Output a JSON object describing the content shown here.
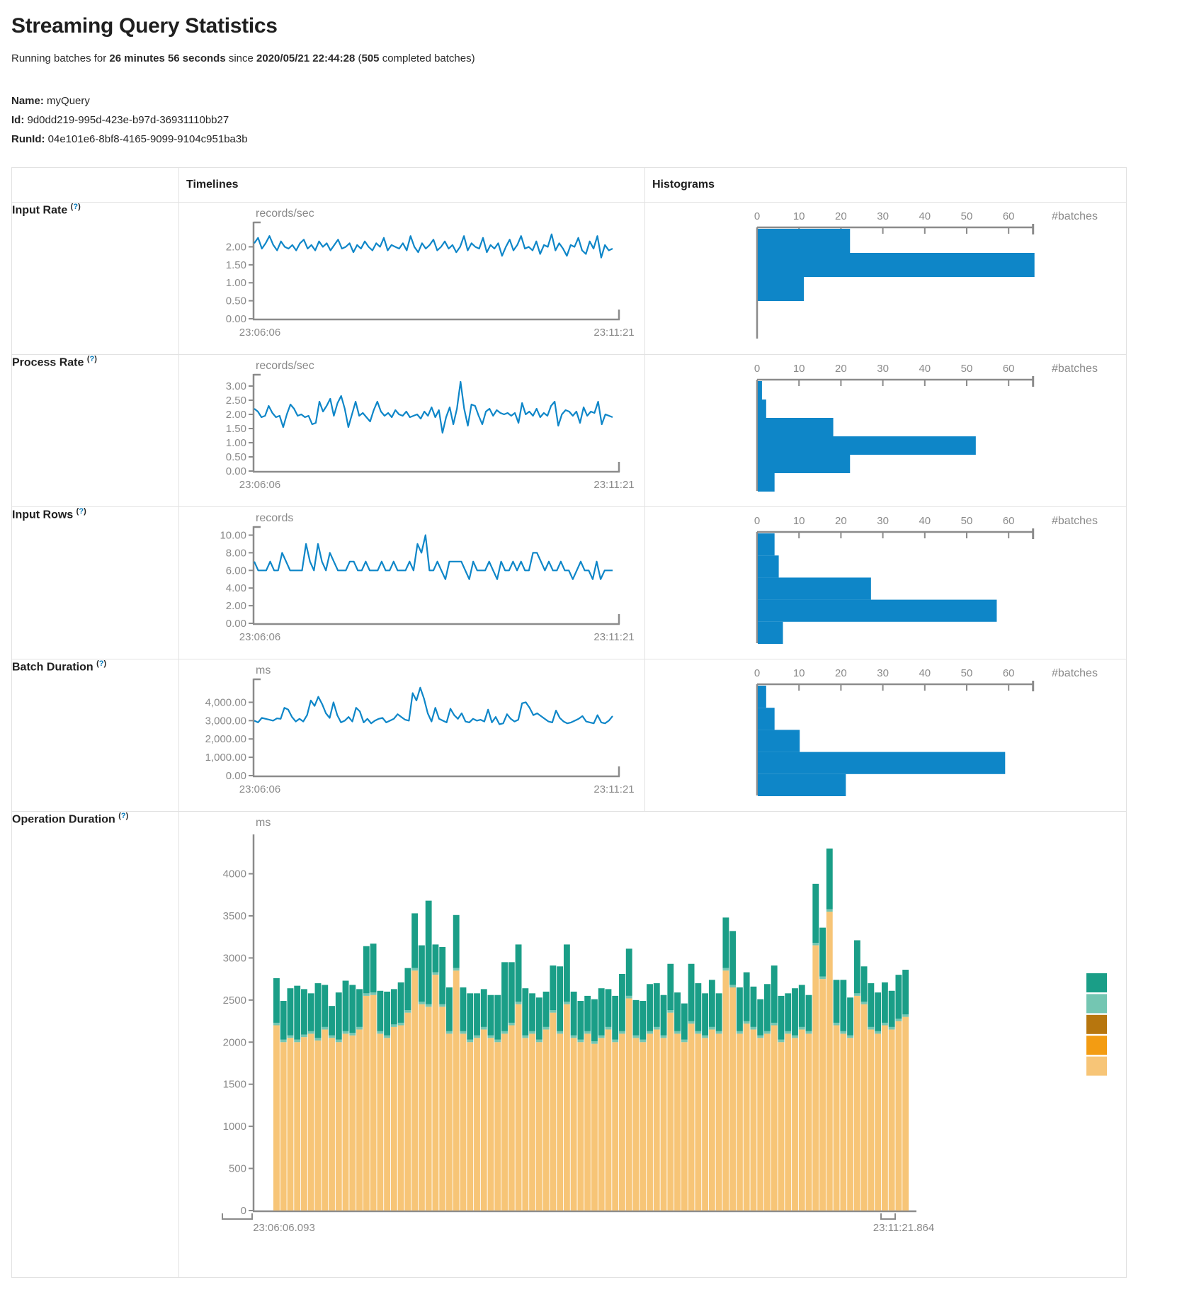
{
  "page": {
    "title": "Streaming Query Statistics",
    "subtitle": {
      "prefix": "Running batches for ",
      "duration": "26 minutes 56 seconds",
      "mid": " since ",
      "start_time": "2020/05/21 22:44:28",
      "paren": " (",
      "batch_count": "505",
      "suffix": " completed batches)"
    },
    "query": {
      "name_label": "Name:",
      "name": "myQuery",
      "id_label": "Id:",
      "id": "9d0dd219-995d-423e-b97d-36931110bb27",
      "runid_label": "RunId:",
      "runid": "04e101e6-8bf8-4165-9099-9104c951ba3b"
    }
  },
  "table": {
    "col_timelines": "Timelines",
    "col_histograms": "Histograms"
  },
  "help_marker": {
    "open": "(",
    "q": "?",
    "close": ")"
  },
  "colors": {
    "line_blue": "#0e86c8",
    "axis_gray": "#8b8b8b",
    "tick_text": "#8a8a8a",
    "teal": "#1a9e87",
    "light_teal": "#74c6b2",
    "dark_orange": "#b7760e",
    "orange": "#f39c12",
    "light_orange": "#f7c577",
    "help_blue": "#0077b9",
    "border": "#e2e2e2"
  },
  "chart_data": {
    "rows": [
      {
        "label": "Input Rate",
        "timeline": {
          "type": "line",
          "unit": "records/sec",
          "color": "#0e86c8",
          "ymax": 2.6,
          "ytick_values": [
            0,
            0.5,
            1,
            1.5,
            2
          ],
          "ytick_labels": [
            "0.00",
            "0.50",
            "1.00",
            "1.50",
            "2.00"
          ],
          "x_start": "23:06:06",
          "x_end": "23:11:21",
          "values": [
            2.1,
            2.25,
            1.95,
            2.1,
            2.3,
            2.05,
            1.9,
            2.15,
            2.0,
            1.95,
            2.05,
            1.9,
            2.1,
            2.2,
            1.95,
            2.05,
            1.9,
            2.15,
            2.0,
            2.1,
            1.9,
            2.05,
            2.2,
            1.95,
            2.0,
            2.1,
            1.85,
            2.05,
            1.95,
            2.15,
            2.0,
            1.9,
            2.1,
            2.0,
            2.25,
            1.9,
            2.05,
            2.0,
            1.95,
            2.1,
            1.9,
            2.3,
            2.0,
            1.85,
            2.1,
            1.95,
            2.05,
            2.2,
            1.9,
            2.0,
            2.15,
            1.95,
            2.05,
            1.85,
            2.0,
            2.3,
            1.9,
            2.1,
            2.0,
            1.95,
            2.25,
            1.85,
            2.05,
            1.95,
            2.1,
            1.75,
            2.0,
            2.2,
            1.9,
            2.05,
            2.3,
            1.95,
            2.0,
            1.9,
            2.15,
            1.8,
            2.05,
            2.0,
            2.35,
            1.9,
            2.1,
            1.95,
            1.75,
            2.05,
            2.0,
            2.25,
            1.9,
            1.8,
            2.15,
            1.95,
            2.3,
            1.7,
            2.05,
            1.9,
            1.95
          ]
        },
        "histogram": {
          "type": "bar",
          "axis_label": "#batches",
          "color": "#0e86c8",
          "xtick_values": [
            0,
            10,
            20,
            30,
            40,
            50,
            60
          ],
          "xmax": 66,
          "bins": [
            22,
            66,
            11
          ]
        }
      },
      {
        "label": "Process Rate",
        "timeline": {
          "type": "line",
          "unit": "records/sec",
          "color": "#0e86c8",
          "ymax": 3.3,
          "ytick_values": [
            0,
            0.5,
            1,
            1.5,
            2,
            2.5,
            3
          ],
          "ytick_labels": [
            "0.00",
            "0.50",
            "1.00",
            "1.50",
            "2.00",
            "2.50",
            "3.00"
          ],
          "x_start": "23:06:06",
          "x_end": "23:11:21",
          "values": [
            2.2,
            2.1,
            1.9,
            1.95,
            2.3,
            2.05,
            1.9,
            1.95,
            1.55,
            2.0,
            2.35,
            2.2,
            1.95,
            2.0,
            1.9,
            1.95,
            1.65,
            1.7,
            2.45,
            2.1,
            2.3,
            2.55,
            1.95,
            2.4,
            2.65,
            2.2,
            1.55,
            2.0,
            2.45,
            1.95,
            2.05,
            1.9,
            1.75,
            2.15,
            2.45,
            2.1,
            1.95,
            2.05,
            1.9,
            2.15,
            2.0,
            1.95,
            2.1,
            1.9,
            1.95,
            2.0,
            1.85,
            2.1,
            1.95,
            2.25,
            1.9,
            2.15,
            1.35,
            1.9,
            2.25,
            1.65,
            2.2,
            3.15,
            2.2,
            1.6,
            2.35,
            2.3,
            1.95,
            1.65,
            2.1,
            2.2,
            1.95,
            2.15,
            2.05,
            2.0,
            2.05,
            1.95,
            2.05,
            1.7,
            2.4,
            2.0,
            2.1,
            1.95,
            2.2,
            1.9,
            2.05,
            1.95,
            2.3,
            2.45,
            1.6,
            2.0,
            2.15,
            2.1,
            1.95,
            2.1,
            1.7,
            2.25,
            1.95,
            2.1,
            2.05,
            2.45,
            1.65,
            2.0,
            1.95,
            1.9
          ]
        },
        "histogram": {
          "type": "bar",
          "axis_label": "#batches",
          "color": "#0e86c8",
          "xtick_values": [
            0,
            10,
            20,
            30,
            40,
            50,
            60
          ],
          "xmax": 66,
          "bins": [
            1,
            2,
            18,
            52,
            22,
            4
          ]
        }
      },
      {
        "label": "Input Rows",
        "timeline": {
          "type": "line",
          "unit": "records",
          "color": "#0e86c8",
          "ymax": 10.6,
          "ytick_values": [
            0,
            2,
            4,
            6,
            8,
            10
          ],
          "ytick_labels": [
            "0.00",
            "2.00",
            "4.00",
            "6.00",
            "8.00",
            "10.00"
          ],
          "x_start": "23:06:06",
          "x_end": "23:11:21",
          "values": [
            7,
            6,
            6,
            6,
            7,
            6,
            6,
            8,
            7,
            6,
            6,
            6,
            6,
            9,
            7,
            6,
            9,
            7,
            6,
            8,
            7,
            6,
            6,
            6,
            7,
            7,
            6,
            6,
            7,
            6,
            6,
            6,
            7,
            6,
            6,
            7,
            6,
            6,
            6,
            7,
            6,
            9,
            8,
            10,
            6,
            6,
            7,
            6,
            5,
            7,
            7,
            7,
            7,
            6,
            5,
            7,
            6,
            6,
            6,
            7,
            6,
            5,
            7,
            6,
            6,
            7,
            6,
            7,
            6,
            6,
            8,
            8,
            7,
            6,
            7,
            6,
            6,
            7,
            6,
            6,
            5,
            6,
            7,
            6,
            6,
            5,
            7,
            5,
            6,
            6,
            6
          ]
        },
        "histogram": {
          "type": "bar",
          "axis_label": "#batches",
          "color": "#0e86c8",
          "xtick_values": [
            0,
            10,
            20,
            30,
            40,
            50,
            60
          ],
          "xmax": 66,
          "bins": [
            4,
            5,
            27,
            57,
            6
          ]
        }
      },
      {
        "label": "Batch Duration",
        "timeline": {
          "type": "line",
          "unit": "ms",
          "color": "#0e86c8",
          "ymax": 5100,
          "ytick_values": [
            0,
            1000,
            2000,
            3000,
            4000
          ],
          "ytick_labels": [
            "0.00",
            "1,000.00",
            "2,000.00",
            "3,000.00",
            "4,000.00"
          ],
          "x_start": "23:06:06",
          "x_end": "23:11:21",
          "values": [
            3000,
            2900,
            3150,
            3100,
            3050,
            3000,
            3120,
            3100,
            3700,
            3600,
            3200,
            2950,
            3100,
            2950,
            3300,
            4100,
            3800,
            4300,
            3900,
            3400,
            3150,
            4000,
            3300,
            2900,
            3000,
            3200,
            2950,
            3700,
            3500,
            2900,
            3100,
            2850,
            3000,
            3100,
            3150,
            2900,
            3000,
            3100,
            3350,
            3200,
            3050,
            3000,
            4500,
            4100,
            4800,
            4200,
            3400,
            2950,
            3700,
            3100,
            3000,
            2900,
            3650,
            3300,
            3100,
            3400,
            2950,
            2900,
            3100,
            3000,
            3050,
            2950,
            3600,
            2900,
            3200,
            2800,
            2850,
            3350,
            3100,
            2950,
            3050,
            3950,
            4000,
            3700,
            3300,
            3400,
            3250,
            3100,
            2950,
            2900,
            3550,
            3150,
            2950,
            2850,
            2900,
            3000,
            3100,
            3250,
            2950,
            2900,
            2850,
            3300,
            2900,
            2850,
            3000,
            3250
          ]
        },
        "histogram": {
          "type": "bar",
          "axis_label": "#batches",
          "color": "#0e86c8",
          "xtick_values": [
            0,
            10,
            20,
            30,
            40,
            50,
            60
          ],
          "xmax": 66,
          "bins": [
            2,
            4,
            10,
            59,
            21
          ]
        }
      },
      {
        "label": "Operation Duration",
        "stacked": {
          "type": "stacked-bar",
          "unit": "ms",
          "ymax": 4400,
          "ytick_values": [
            0,
            500,
            1000,
            1500,
            2000,
            2500,
            3000,
            3500,
            4000
          ],
          "ytick_labels": [
            "0",
            "500",
            "1000",
            "1500",
            "2000",
            "2500",
            "3000",
            "3500",
            "4000"
          ],
          "x_start": "23:06:06.093",
          "x_end": "23:11:21.864",
          "legend_colors": [
            "#1a9e87",
            "#74c6b2",
            "#b7760e",
            "#f39c12",
            "#f7c577"
          ],
          "series": [
            {
              "color": "#f7c577",
              "values": [
                2200,
                2000,
                2050,
                2000,
                2060,
                2100,
                2020,
                2150,
                2050,
                2000,
                2100,
                2080,
                2150,
                2550,
                2560,
                2100,
                2050,
                2180,
                2200,
                2350,
                2850,
                2450,
                2420,
                2800,
                2420,
                2100,
                2850,
                2100,
                2000,
                2050,
                2150,
                2050,
                2000,
                2100,
                2200,
                2450,
                2050,
                2100,
                2000,
                2150,
                2350,
                2100,
                2450,
                2050,
                2000,
                2100,
                1980,
                2050,
                2150,
                2000,
                2100,
                2520,
                2050,
                2000,
                2100,
                2150,
                2050,
                2350,
                2100,
                2000,
                2220,
                2100,
                2050,
                2150,
                2100,
                2850,
                2650,
                2100,
                2220,
                2150,
                2050,
                2100,
                2200,
                2000,
                2100,
                2050,
                2150,
                2100,
                3150,
                2750,
                3550,
                2200,
                2100,
                2050,
                2550,
                2450,
                2150,
                2100,
                2200,
                2150,
                2250,
                2300
              ]
            },
            {
              "color": "#74c6b2",
              "constant": 30,
              "count": 92
            },
            {
              "color": "#1a9e87",
              "values": [
                530,
                460,
                560,
                640,
                540,
                450,
                650,
                500,
                350,
                560,
                600,
                570,
                450,
                560,
                580,
                480,
                520,
                420,
                480,
                500,
                650,
                670,
                1230,
                330,
                680,
                520,
                630,
                520,
                550,
                500,
                450,
                480,
                530,
                820,
                720,
                680,
                560,
                450,
                500,
                420,
                530,
                770,
                680,
                520,
                460,
                420,
                500,
                560,
                450,
                520,
                680,
                560,
                420,
                460,
                560,
                520,
                480,
                550,
                460,
                430,
                680,
                570,
                500,
                560,
                450,
                600,
                640,
                520,
                580,
                480,
                430,
                560,
                680,
                520,
                450,
                560,
                500,
                430,
                700,
                580,
                720,
                510,
                610,
                450,
                630,
                420,
                520,
                460,
                480,
                430,
                520,
                530
              ]
            }
          ]
        }
      }
    ]
  }
}
